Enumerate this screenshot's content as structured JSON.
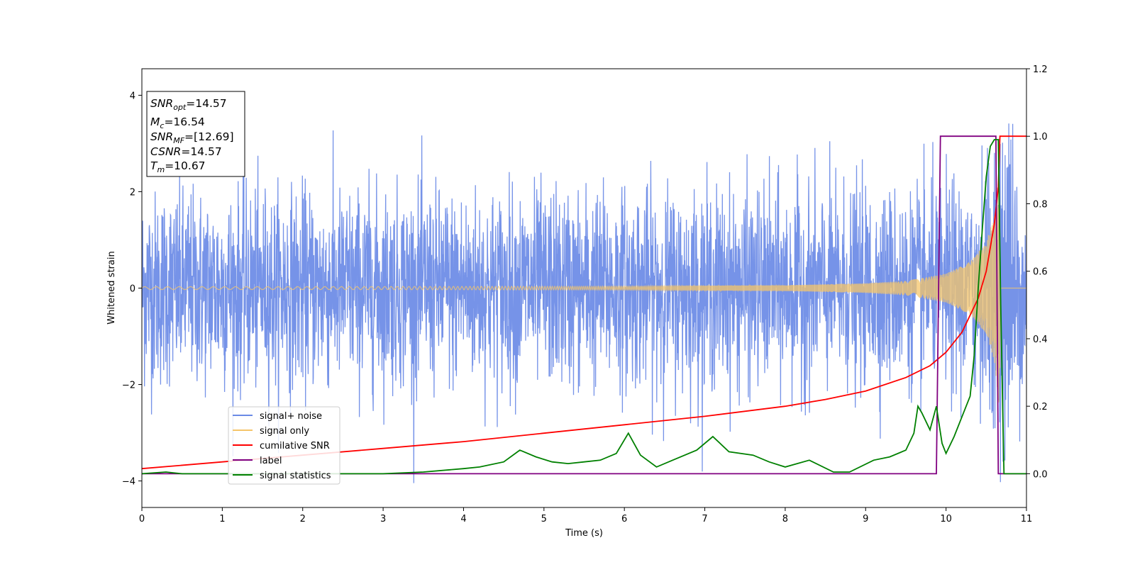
{
  "chart_data": {
    "type": "line",
    "xlabel": "Time (s)",
    "ylabel_left": "Whitened strain",
    "ylabel_right": "",
    "xlim": [
      0,
      11
    ],
    "ylim_left": [
      -4.55,
      4.55
    ],
    "ylim_right": [
      -0.1,
      1.2
    ],
    "x_ticks": [
      0,
      1,
      2,
      3,
      4,
      5,
      6,
      7,
      8,
      9,
      10,
      11
    ],
    "y_ticks_left": [
      -4,
      -2,
      0,
      2,
      4
    ],
    "y_ticks_right": [
      0.0,
      0.2,
      0.4,
      0.6,
      0.8,
      1.0,
      1.2
    ],
    "y_ticks_right_labels": [
      "0.0",
      "0.2",
      "0.4",
      "0.6",
      "0.8",
      "1.0",
      "1.2"
    ],
    "grid": false,
    "legend_position": "lower-left",
    "legend": [
      {
        "label": "signal+ noise",
        "color": "#6a8ae6"
      },
      {
        "label": "signal only",
        "color": "#f5c56a"
      },
      {
        "label": "cumilative SNR",
        "color": "#ff0000"
      },
      {
        "label": "label",
        "color": "#800080"
      },
      {
        "label": "signal statistics",
        "color": "#008000"
      }
    ],
    "info_box": [
      {
        "main": "SNR",
        "sub": "opt",
        "value": "=14.57"
      },
      {
        "main": "M",
        "sub": "c",
        "value": "=16.54"
      },
      {
        "main": "SNR",
        "sub": "MF",
        "value": "=[12.69]"
      },
      {
        "main": "CSNR",
        "sub": "",
        "value": "=14.57"
      },
      {
        "main": "T",
        "sub": "m",
        "value": "=10.67"
      }
    ],
    "series": [
      {
        "name": "signal+ noise",
        "axis": "left",
        "color": "#6a8ae6",
        "description_points": {
          "x_range": [
            0,
            11
          ],
          "typical_amplitude": 2.3,
          "max": 4.13,
          "min": -4.1
        }
      },
      {
        "name": "signal only",
        "axis": "left",
        "color": "#f5c56a",
        "envelope": {
          "x": [
            0,
            2,
            4,
            6,
            8,
            9,
            9.5,
            10,
            10.3,
            10.5,
            10.6,
            10.67,
            11
          ],
          "amp": [
            0.03,
            0.03,
            0.035,
            0.04,
            0.06,
            0.1,
            0.15,
            0.3,
            0.55,
            0.95,
            1.5,
            2.6,
            0
          ]
        }
      },
      {
        "name": "cumilative SNR",
        "axis": "right",
        "color": "#ff0000",
        "x": [
          0,
          1,
          2,
          3,
          4,
          5,
          6,
          7,
          8,
          8.5,
          9,
          9.5,
          9.8,
          10,
          10.2,
          10.4,
          10.5,
          10.6,
          10.65,
          10.67,
          10.7,
          11
        ],
        "y": [
          0.015,
          0.035,
          0.055,
          0.075,
          0.095,
          0.12,
          0.145,
          0.17,
          0.2,
          0.22,
          0.245,
          0.285,
          0.32,
          0.36,
          0.42,
          0.52,
          0.6,
          0.74,
          0.85,
          1.0,
          1.0,
          1.0
        ]
      },
      {
        "name": "label",
        "axis": "right",
        "color": "#800080",
        "x": [
          0,
          9.88,
          9.93,
          10.62,
          10.65,
          11
        ],
        "y": [
          0.0,
          0.0,
          1.0,
          1.0,
          0.0,
          0.0
        ]
      },
      {
        "name": "signal statistics",
        "axis": "right",
        "color": "#008000",
        "x": [
          0,
          0.3,
          0.5,
          1,
          2,
          3,
          3.5,
          4,
          4.2,
          4.5,
          4.7,
          4.9,
          5.1,
          5.3,
          5.5,
          5.7,
          5.9,
          6.05,
          6.2,
          6.4,
          6.6,
          6.9,
          7.1,
          7.3,
          7.6,
          7.8,
          8.0,
          8.3,
          8.6,
          8.8,
          9.1,
          9.3,
          9.5,
          9.6,
          9.65,
          9.7,
          9.8,
          9.88,
          9.95,
          10.0,
          10.1,
          10.2,
          10.3,
          10.35,
          10.4,
          10.45,
          10.5,
          10.55,
          10.6,
          10.65,
          10.68,
          10.72,
          11
        ],
        "y": [
          0.0,
          0.005,
          0.0,
          0.0,
          0.0,
          0.0,
          0.005,
          0.015,
          0.02,
          0.035,
          0.07,
          0.05,
          0.035,
          0.03,
          0.035,
          0.04,
          0.06,
          0.12,
          0.055,
          0.02,
          0.04,
          0.07,
          0.11,
          0.065,
          0.055,
          0.035,
          0.02,
          0.04,
          0.005,
          0.005,
          0.04,
          0.05,
          0.07,
          0.12,
          0.2,
          0.18,
          0.13,
          0.2,
          0.09,
          0.06,
          0.11,
          0.17,
          0.23,
          0.35,
          0.55,
          0.72,
          0.88,
          0.97,
          0.99,
          0.99,
          0.5,
          0.0,
          0.0
        ]
      }
    ]
  }
}
